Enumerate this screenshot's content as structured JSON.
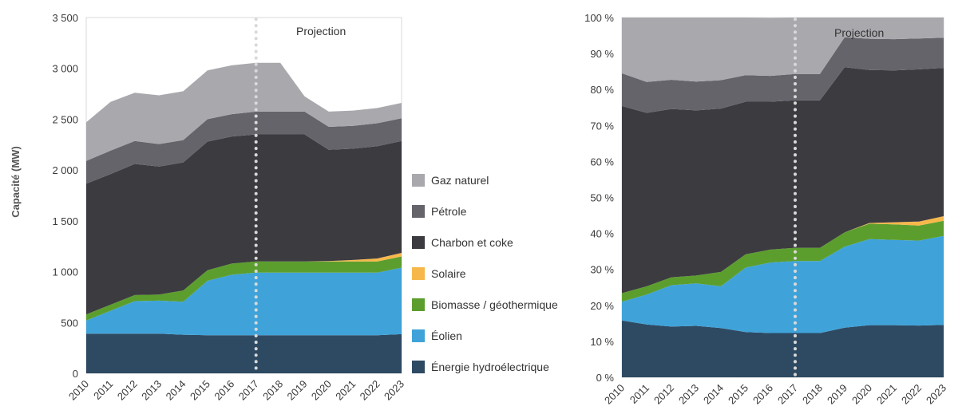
{
  "chart_data": [
    {
      "type": "area",
      "stacked": true,
      "ylabel": "Capacité (MW)",
      "ylim": [
        0,
        3500
      ],
      "yticks": [
        "0",
        "500",
        "1 000",
        "1 500",
        "2 000",
        "2 500",
        "3 000",
        "3 500"
      ],
      "x": [
        "2010",
        "2011",
        "2012",
        "2013",
        "2014",
        "2015",
        "2016",
        "2017",
        "2018",
        "2019",
        "2020",
        "2021",
        "2022",
        "2023"
      ],
      "projection_label": "Projection",
      "projection_start": "2017",
      "series": [
        {
          "name": "Énergie hydroélectrique",
          "color": "#2e4a63",
          "values": [
            390,
            390,
            390,
            390,
            380,
            375,
            375,
            375,
            375,
            375,
            375,
            375,
            375,
            385
          ]
        },
        {
          "name": "Éolien",
          "color": "#3fa3d9",
          "values": [
            130,
            225,
            320,
            325,
            325,
            535,
            595,
            615,
            615,
            615,
            615,
            615,
            615,
            655
          ]
        },
        {
          "name": "Biomasse / géothermique",
          "color": "#5c9e2e",
          "values": [
            60,
            60,
            60,
            60,
            110,
            105,
            110,
            110,
            110,
            110,
            110,
            110,
            110,
            110
          ]
        },
        {
          "name": "Solaire",
          "color": "#f7b84b",
          "values": [
            0,
            0,
            0,
            0,
            0,
            0,
            0,
            0,
            0,
            0,
            5,
            15,
            30,
            35
          ]
        },
        {
          "name": "Charbon et coke",
          "color": "#3c3b40",
          "values": [
            1285,
            1285,
            1290,
            1260,
            1260,
            1265,
            1250,
            1250,
            1250,
            1250,
            1095,
            1095,
            1105,
            1100
          ]
        },
        {
          "name": "Pétrole",
          "color": "#65646b",
          "values": [
            225,
            230,
            225,
            220,
            220,
            220,
            220,
            225,
            225,
            225,
            225,
            225,
            225,
            225
          ]
        },
        {
          "name": "Gaz naturel",
          "color": "#a9a8ad",
          "values": [
            380,
            480,
            475,
            480,
            480,
            480,
            480,
            480,
            480,
            150,
            150,
            150,
            150,
            150
          ]
        }
      ]
    },
    {
      "type": "area",
      "stacked": true,
      "percent": true,
      "ylim": [
        0,
        100
      ],
      "yticks": [
        "0 %",
        "10 %",
        "20 %",
        "30 %",
        "40 %",
        "50 %",
        "60 %",
        "70 %",
        "80 %",
        "90 %",
        "100 %"
      ],
      "x": [
        "2010",
        "2011",
        "2012",
        "2013",
        "2014",
        "2015",
        "2016",
        "2017",
        "2018",
        "2019",
        "2020",
        "2021",
        "2022",
        "2023"
      ],
      "projection_label": "Projection",
      "projection_start": "2017",
      "series": [
        {
          "name": "Énergie hydroélectrique",
          "color": "#2e4a63",
          "values": [
            15.8,
            14.7,
            14.1,
            14.3,
            13.7,
            12.6,
            12.3,
            12.3,
            12.3,
            13.8,
            14.5,
            14.5,
            14.4,
            14.6
          ]
        },
        {
          "name": "Éolien",
          "color": "#3fa3d9",
          "values": [
            5.2,
            8.3,
            11.5,
            11.8,
            11.6,
            17.9,
            19.6,
            20.0,
            20.0,
            22.5,
            23.9,
            23.7,
            23.6,
            24.7
          ]
        },
        {
          "name": "Biomasse / géothermique",
          "color": "#5c9e2e",
          "values": [
            2.4,
            2.3,
            2.2,
            2.2,
            4.0,
            3.7,
            3.6,
            3.7,
            3.7,
            4.0,
            4.3,
            4.3,
            4.2,
            4.2
          ]
        },
        {
          "name": "Solaire",
          "color": "#f7b84b",
          "values": [
            0,
            0,
            0,
            0,
            0,
            0,
            0,
            0,
            0,
            0,
            0.2,
            0.6,
            1.1,
            1.3
          ]
        },
        {
          "name": "Charbon et coke",
          "color": "#3c3b40",
          "values": [
            52.0,
            48.2,
            46.8,
            45.9,
            45.4,
            42.4,
            41.1,
            41.0,
            41.0,
            45.9,
            42.5,
            42.2,
            42.3,
            41.2
          ]
        },
        {
          "name": "Pétrole",
          "color": "#65646b",
          "values": [
            9.1,
            8.6,
            8.1,
            8.0,
            7.9,
            7.4,
            7.2,
            7.3,
            7.3,
            8.3,
            8.7,
            8.7,
            8.6,
            8.4
          ]
        },
        {
          "name": "Gaz naturel",
          "color": "#a9a8ad",
          "values": [
            15.5,
            17.9,
            17.3,
            17.8,
            17.4,
            16.0,
            16.1,
            15.7,
            15.7,
            5.5,
            5.9,
            6.0,
            5.8,
            5.6
          ]
        }
      ]
    }
  ],
  "legend": {
    "items": [
      {
        "label": "Gaz naturel",
        "color": "#a9a8ad"
      },
      {
        "label": "Pétrole",
        "color": "#65646b"
      },
      {
        "label": "Charbon et coke",
        "color": "#3c3b40"
      },
      {
        "label": "Solaire",
        "color": "#f7b84b"
      },
      {
        "label": "Biomasse / géothermique",
        "color": "#5c9e2e"
      },
      {
        "label": "Éolien",
        "color": "#3fa3d9"
      },
      {
        "label": "Énergie hydroélectrique",
        "color": "#2e4a63"
      }
    ]
  }
}
